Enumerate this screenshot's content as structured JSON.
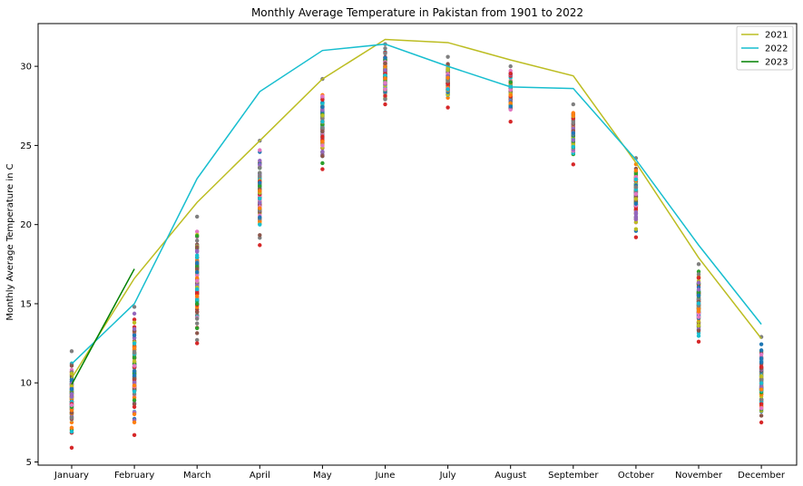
{
  "chart_data": {
    "type": "scatter",
    "title": "Monthly Average Temperature in Pakistan from 1901 to 2022",
    "xlabel": "",
    "ylabel": "Monthly Average Temperature in C",
    "categories": [
      "January",
      "February",
      "March",
      "April",
      "May",
      "June",
      "July",
      "August",
      "September",
      "October",
      "November",
      "December"
    ],
    "ylim": [
      4.8,
      32.7
    ],
    "yticks": [
      5,
      10,
      15,
      20,
      25,
      30
    ],
    "grid": false,
    "legend_position": "top-right",
    "scatter_ranges": [
      {
        "month": "January",
        "min": 5.9,
        "max": 12.0
      },
      {
        "month": "February",
        "min": 6.7,
        "max": 14.8
      },
      {
        "month": "March",
        "min": 12.5,
        "max": 20.5
      },
      {
        "month": "April",
        "min": 18.7,
        "max": 25.3
      },
      {
        "month": "May",
        "min": 23.5,
        "max": 29.2
      },
      {
        "month": "June",
        "min": 27.6,
        "max": 31.4
      },
      {
        "month": "July",
        "min": 27.4,
        "max": 30.6
      },
      {
        "month": "August",
        "min": 26.5,
        "max": 30.0
      },
      {
        "month": "September",
        "min": 23.8,
        "max": 27.6
      },
      {
        "month": "October",
        "min": 19.2,
        "max": 24.2
      },
      {
        "month": "November",
        "min": 12.6,
        "max": 17.5
      },
      {
        "month": "December",
        "min": 7.5,
        "max": 12.9
      }
    ],
    "series": [
      {
        "name": "2021",
        "color": "#bcbd22",
        "values": [
          10.3,
          16.6,
          21.4,
          25.3,
          29.2,
          31.7,
          31.5,
          30.4,
          29.4,
          23.9,
          17.9,
          12.8
        ]
      },
      {
        "name": "2022",
        "color": "#17becf",
        "values": [
          11.2,
          15.0,
          22.9,
          28.4,
          31.0,
          31.4,
          30.0,
          28.7,
          28.6,
          24.1,
          18.7,
          13.7
        ]
      },
      {
        "name": "2023",
        "color": "#008000",
        "values": [
          9.9,
          17.2
        ]
      }
    ]
  },
  "colors": {
    "dot_palette": [
      "#1f77b4",
      "#ff7f0e",
      "#2ca02c",
      "#d62728",
      "#9467bd",
      "#8c564b",
      "#e377c2",
      "#7f7f7f",
      "#bcbd22",
      "#17becf"
    ]
  }
}
